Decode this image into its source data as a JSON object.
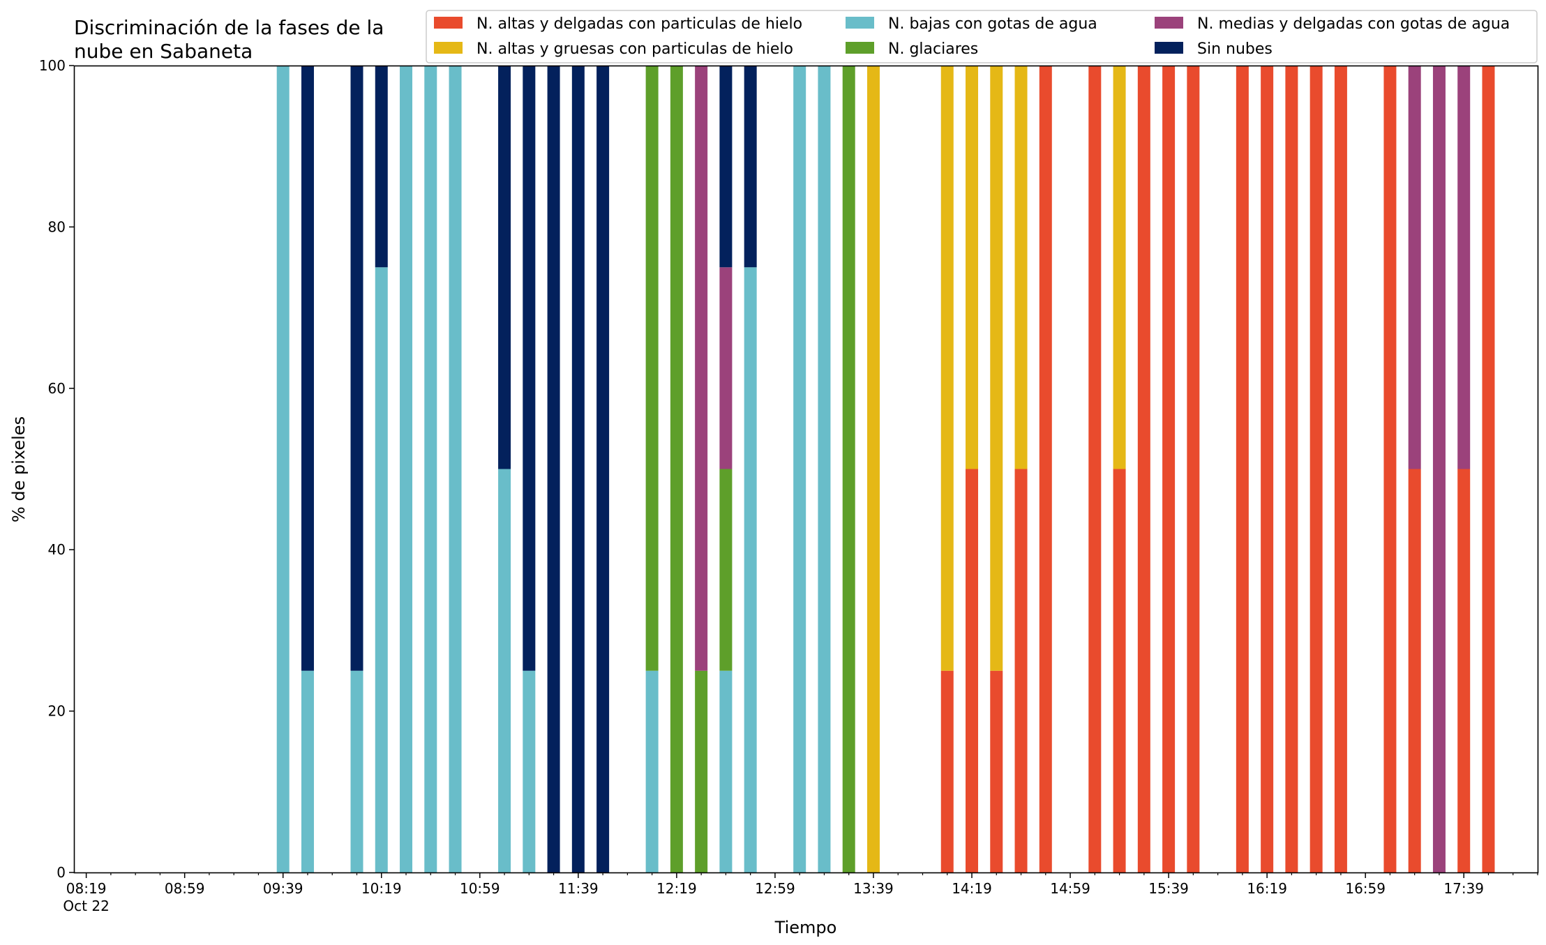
{
  "chart_data": {
    "type": "bar",
    "stacked": true,
    "title": "Discriminación de la fases de la nube en Sabaneta",
    "title_lines": [
      "Discriminación de la fases de la",
      "nube en Sabaneta"
    ],
    "xlabel": "Tiempo",
    "ylabel": "% de pixeles",
    "ylim": [
      0,
      100
    ],
    "yticks": [
      0,
      20,
      40,
      60,
      80,
      100
    ],
    "xlim": [
      "08:14",
      "18:09"
    ],
    "xticks": [
      {
        "time": "08:19",
        "label": "08:19",
        "sublabel": "Oct 22"
      },
      {
        "time": "08:59",
        "label": "08:59"
      },
      {
        "time": "09:39",
        "label": "09:39"
      },
      {
        "time": "10:19",
        "label": "10:19"
      },
      {
        "time": "10:59",
        "label": "10:59"
      },
      {
        "time": "11:39",
        "label": "11:39"
      },
      {
        "time": "12:19",
        "label": "12:19"
      },
      {
        "time": "12:59",
        "label": "12:59"
      },
      {
        "time": "13:39",
        "label": "13:39"
      },
      {
        "time": "14:19",
        "label": "14:19"
      },
      {
        "time": "14:59",
        "label": "14:59"
      },
      {
        "time": "15:39",
        "label": "15:39"
      },
      {
        "time": "16:19",
        "label": "16:19"
      },
      {
        "time": "16:59",
        "label": "16:59"
      },
      {
        "time": "17:39",
        "label": "17:39"
      }
    ],
    "minor_tick_interval_minutes": 10,
    "grid": false,
    "legend_position": "top-right",
    "series": [
      {
        "name": "N. altas y delgadas con particulas de hielo",
        "color": "#E94B2D"
      },
      {
        "name": "N. altas y gruesas con particulas de hielo",
        "color": "#E5B816"
      },
      {
        "name": "N. bajas con gotas de agua",
        "color": "#69BDC9"
      },
      {
        "name": "N. glaciares",
        "color": "#5E9F2A"
      },
      {
        "name": "N. medias y delgadas con gotas de agua",
        "color": "#9B427B"
      },
      {
        "name": "Sin nubes",
        "color": "#03215C"
      }
    ],
    "legend_layout": [
      [
        0,
        2,
        4
      ],
      [
        1,
        3,
        5
      ]
    ],
    "bars": [
      {
        "time": "09:39",
        "segments": [
          [
            2,
            100
          ]
        ]
      },
      {
        "time": "09:49",
        "segments": [
          [
            2,
            25
          ],
          [
            5,
            75
          ]
        ]
      },
      {
        "time": "10:09",
        "segments": [
          [
            2,
            25
          ],
          [
            5,
            75
          ]
        ]
      },
      {
        "time": "10:19",
        "segments": [
          [
            2,
            75
          ],
          [
            5,
            25
          ]
        ]
      },
      {
        "time": "10:29",
        "segments": [
          [
            2,
            100
          ]
        ]
      },
      {
        "time": "10:39",
        "segments": [
          [
            2,
            100
          ]
        ]
      },
      {
        "time": "10:49",
        "segments": [
          [
            2,
            100
          ]
        ]
      },
      {
        "time": "11:09",
        "segments": [
          [
            2,
            50
          ],
          [
            5,
            50
          ]
        ]
      },
      {
        "time": "11:19",
        "segments": [
          [
            2,
            25
          ],
          [
            5,
            75
          ]
        ]
      },
      {
        "time": "11:29",
        "segments": [
          [
            5,
            100
          ]
        ]
      },
      {
        "time": "11:39",
        "segments": [
          [
            5,
            100
          ]
        ]
      },
      {
        "time": "11:49",
        "segments": [
          [
            5,
            100
          ]
        ]
      },
      {
        "time": "12:09",
        "segments": [
          [
            2,
            25
          ],
          [
            3,
            75
          ]
        ]
      },
      {
        "time": "12:19",
        "segments": [
          [
            3,
            100
          ]
        ]
      },
      {
        "time": "12:29",
        "segments": [
          [
            3,
            25
          ],
          [
            4,
            75
          ]
        ]
      },
      {
        "time": "12:39",
        "segments": [
          [
            2,
            25
          ],
          [
            3,
            25
          ],
          [
            4,
            25
          ],
          [
            5,
            25
          ]
        ]
      },
      {
        "time": "12:49",
        "segments": [
          [
            2,
            75
          ],
          [
            5,
            25
          ]
        ]
      },
      {
        "time": "13:09",
        "segments": [
          [
            2,
            100
          ]
        ]
      },
      {
        "time": "13:19",
        "segments": [
          [
            2,
            100
          ]
        ]
      },
      {
        "time": "13:29",
        "segments": [
          [
            3,
            100
          ]
        ]
      },
      {
        "time": "13:39",
        "segments": [
          [
            1,
            100
          ]
        ]
      },
      {
        "time": "14:09",
        "segments": [
          [
            0,
            25
          ],
          [
            1,
            75
          ]
        ]
      },
      {
        "time": "14:19",
        "segments": [
          [
            0,
            50
          ],
          [
            1,
            50
          ]
        ]
      },
      {
        "time": "14:29",
        "segments": [
          [
            0,
            25
          ],
          [
            1,
            75
          ]
        ]
      },
      {
        "time": "14:39",
        "segments": [
          [
            0,
            50
          ],
          [
            1,
            50
          ]
        ]
      },
      {
        "time": "14:49",
        "segments": [
          [
            0,
            100
          ]
        ]
      },
      {
        "time": "15:09",
        "segments": [
          [
            0,
            100
          ]
        ]
      },
      {
        "time": "15:19",
        "segments": [
          [
            0,
            50
          ],
          [
            1,
            50
          ]
        ]
      },
      {
        "time": "15:29",
        "segments": [
          [
            0,
            100
          ]
        ]
      },
      {
        "time": "15:39",
        "segments": [
          [
            0,
            100
          ]
        ]
      },
      {
        "time": "15:49",
        "segments": [
          [
            0,
            100
          ]
        ]
      },
      {
        "time": "16:09",
        "segments": [
          [
            0,
            100
          ]
        ]
      },
      {
        "time": "16:19",
        "segments": [
          [
            0,
            100
          ]
        ]
      },
      {
        "time": "16:29",
        "segments": [
          [
            0,
            100
          ]
        ]
      },
      {
        "time": "16:39",
        "segments": [
          [
            0,
            100
          ]
        ]
      },
      {
        "time": "16:49",
        "segments": [
          [
            0,
            100
          ]
        ]
      },
      {
        "time": "17:09",
        "segments": [
          [
            0,
            100
          ]
        ]
      },
      {
        "time": "17:19",
        "segments": [
          [
            0,
            50
          ],
          [
            4,
            50
          ]
        ]
      },
      {
        "time": "17:29",
        "segments": [
          [
            4,
            100
          ]
        ]
      },
      {
        "time": "17:39",
        "segments": [
          [
            0,
            50
          ],
          [
            4,
            50
          ]
        ]
      },
      {
        "time": "17:49",
        "segments": [
          [
            0,
            100
          ]
        ]
      }
    ]
  }
}
